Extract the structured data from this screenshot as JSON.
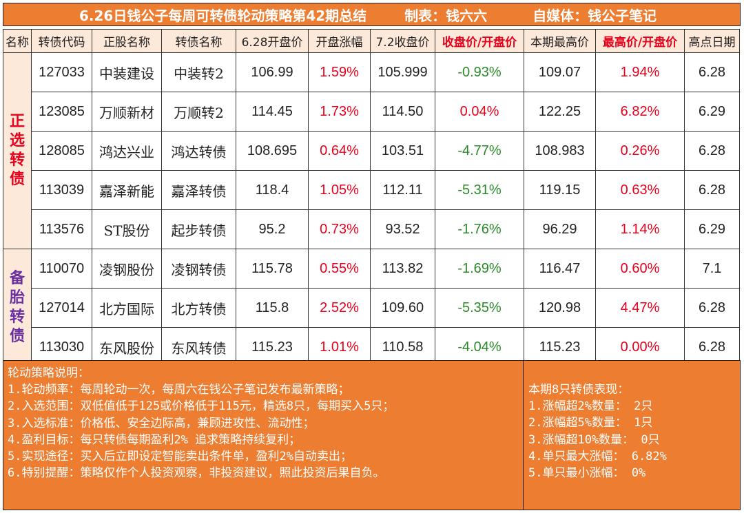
{
  "title": {
    "main": "6.26日钱公子每周可转债轮动策略第42期总结",
    "maker": "制表：钱六六",
    "media": "自媒体：钱公子笔记"
  },
  "headers": [
    "名称",
    "转债代码",
    "正股名称",
    "转债名称",
    "6.28开盘价",
    "开盘涨幅",
    "7.2收盘价",
    "收盘价/开盘价",
    "本期最高价",
    "最高价/开盘价",
    "高点日期"
  ],
  "groups": {
    "selected": "正选转债",
    "reserve": "备胎转债"
  },
  "rows": [
    {
      "code": "127033",
      "stock": "中装建设",
      "bond": "中装转2",
      "open": "106.99",
      "open_chg": "1.59%",
      "close": "105.999",
      "close_ratio": "-0.93%",
      "high": "109.07",
      "high_ratio": "1.94%",
      "high_date": "6.28"
    },
    {
      "code": "123085",
      "stock": "万顺新材",
      "bond": "万顺转2",
      "open": "114.45",
      "open_chg": "1.73%",
      "close": "114.50",
      "close_ratio": "0.04%",
      "high": "122.25",
      "high_ratio": "6.82%",
      "high_date": "6.29"
    },
    {
      "code": "128085",
      "stock": "鸿达兴业",
      "bond": "鸿达转债",
      "open": "108.695",
      "open_chg": "0.64%",
      "close": "103.51",
      "close_ratio": "-4.77%",
      "high": "108.983",
      "high_ratio": "0.26%",
      "high_date": "6.28"
    },
    {
      "code": "113039",
      "stock": "嘉泽新能",
      "bond": "嘉泽转债",
      "open": "118.4",
      "open_chg": "1.05%",
      "close": "112.11",
      "close_ratio": "-5.31%",
      "high": "119.15",
      "high_ratio": "0.63%",
      "high_date": "6.28"
    },
    {
      "code": "113576",
      "stock": "ST股份",
      "bond": "起步转债",
      "open": "95.2",
      "open_chg": "0.73%",
      "close": "93.52",
      "close_ratio": "-1.76%",
      "high": "96.29",
      "high_ratio": "1.14%",
      "high_date": "6.29"
    },
    {
      "code": "110070",
      "stock": "凌钢股份",
      "bond": "凌钢转债",
      "open": "115.78",
      "open_chg": "0.55%",
      "close": "113.82",
      "close_ratio": "-1.69%",
      "high": "116.47",
      "high_ratio": "0.60%",
      "high_date": "7.1"
    },
    {
      "code": "127014",
      "stock": "北方国际",
      "bond": "北方转债",
      "open": "115.8",
      "open_chg": "2.52%",
      "close": "109.60",
      "close_ratio": "-5.35%",
      "high": "120.98",
      "high_ratio": "4.47%",
      "high_date": "6.28"
    },
    {
      "code": "113030",
      "stock": "东风股份",
      "bond": "东风转债",
      "open": "115.23",
      "open_chg": "1.01%",
      "close": "110.58",
      "close_ratio": "-4.04%",
      "high": "115.23",
      "high_ratio": "0.00%",
      "high_date": "6.28"
    }
  ],
  "notes": {
    "heading": "轮动策略说明：",
    "lines": [
      "1.轮动频率：每周轮动一次，每周六在钱公子笔记发布最新策略；",
      "2.入选范围：双低值低于125或价格低于115元，精选8只，每期买入5只；",
      "3.入选标准：价格低、安全边际高，兼顾进攻性、流动性；",
      "4.盈利目标：每只转债每期盈利2% 追求策略持续复利；",
      "5.实现途径：买入后立即设定智能卖出条件单，盈利2%自动卖出；",
      "6.特别提醒：策略仅作个人投资观察，非投资建议，照此投资后果自负。"
    ]
  },
  "stats": {
    "heading": "本期8只转债表现：",
    "lines": [
      "1.涨幅超2%数量： 2只",
      "2.涨幅超5%数量： 1只",
      "3.涨幅超10%数量： 0只",
      "4.单只最大涨幅： 6.82%",
      "5.单只最小涨幅： 0%"
    ]
  },
  "colors": {
    "accent": "#ED7D31",
    "positive": "#e8001c",
    "negative": "#2a8a2a",
    "reserve_label": "#6a2fa0"
  }
}
